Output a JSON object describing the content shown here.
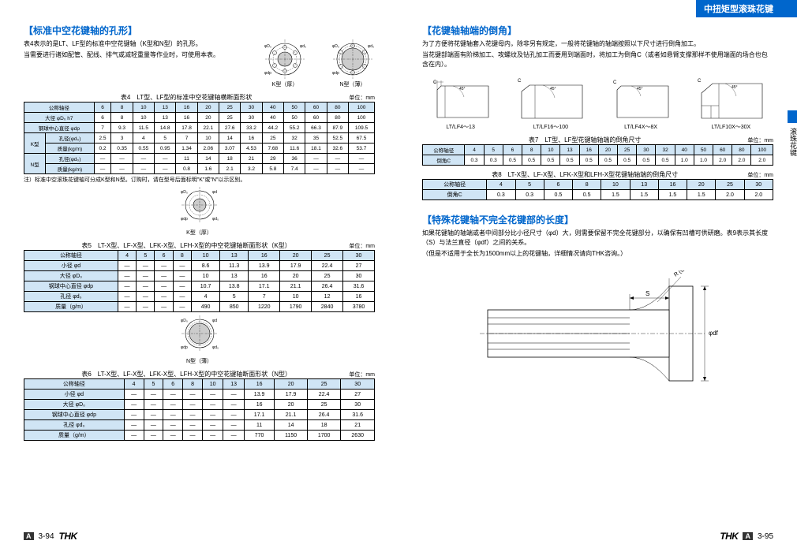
{
  "banner": "中扭矩型滚珠花键",
  "side_tab": "滚珠花键",
  "left": {
    "section1_title": "【标准中空花键轴的孔形】",
    "section1_p1": "表4表示的是LT、LF型的标准中空花键轴（K型和N型）的孔形。",
    "section1_p2": "当需要进行诸如配管、配线、排气或减轻重量等作业时，可使用本表。",
    "diag_k_label": "K型（厚）",
    "diag_n_label": "N型（薄）",
    "table4_caption": "表4　LT型、LF型的标准中空花键轴横断面形状",
    "unit": "单位：mm",
    "table4": {
      "headers": [
        "公称轴径",
        "6",
        "8",
        "10",
        "13",
        "16",
        "20",
        "25",
        "30",
        "40",
        "50",
        "60",
        "80",
        "100"
      ],
      "rows": [
        [
          "大径 φD₀ h7",
          "6",
          "8",
          "10",
          "13",
          "16",
          "20",
          "25",
          "30",
          "40",
          "50",
          "60",
          "80",
          "100"
        ],
        [
          "钢球中心直径 φdp",
          "7",
          "9.3",
          "11.5",
          "14.8",
          "17.8",
          "22.1",
          "27.6",
          "33.2",
          "44.2",
          "55.2",
          "66.3",
          "87.9",
          "109.5"
        ],
        [
          "K型|孔径(φd₀)",
          "2.5",
          "3",
          "4",
          "5",
          "7",
          "10",
          "14",
          "16",
          "25",
          "32",
          "35",
          "52.5",
          "67.5"
        ],
        [
          "K型|质量(kg/m)",
          "0.2",
          "0.35",
          "0.55",
          "0.95",
          "1.34",
          "2.06",
          "3.07",
          "4.53",
          "7.68",
          "11.6",
          "18.1",
          "32.6",
          "53.7"
        ],
        [
          "N型|孔径(φd₀)",
          "—",
          "—",
          "—",
          "—",
          "11",
          "14",
          "18",
          "21",
          "29",
          "36",
          "—",
          "—",
          "—"
        ],
        [
          "N型|质量(kg/m)",
          "—",
          "—",
          "—",
          "—",
          "0.8",
          "1.6",
          "2.1",
          "3.2",
          "5.8",
          "7.4",
          "—",
          "—",
          "—"
        ]
      ]
    },
    "note4": "注）标准中空滚珠花键轴可分成K型和N型。订购时，请在型号后面标明\"K\"或\"N\"以示区别。",
    "table5_caption": "表5　LT-X型、LF-X型、LFK-X型、LFH-X型的中空花键轴断面形状（K型）",
    "table5_diag_label": "K型（厚）",
    "table5": {
      "headers": [
        "公称轴径",
        "4",
        "5",
        "6",
        "8",
        "10",
        "13",
        "16",
        "20",
        "25",
        "30"
      ],
      "rows": [
        [
          "小径 φd",
          "—",
          "—",
          "—",
          "—",
          "8.6",
          "11.3",
          "13.9",
          "17.9",
          "22.4",
          "27"
        ],
        [
          "大径 φD₀",
          "—",
          "—",
          "—",
          "—",
          "10",
          "13",
          "16",
          "20",
          "25",
          "30"
        ],
        [
          "钢球中心直径 φdp",
          "—",
          "—",
          "—",
          "—",
          "10.7",
          "13.8",
          "17.1",
          "21.1",
          "26.4",
          "31.6"
        ],
        [
          "孔径 φd₀",
          "—",
          "—",
          "—",
          "—",
          "4",
          "5",
          "7",
          "10",
          "12",
          "16"
        ],
        [
          "质量（g/m）",
          "—",
          "—",
          "—",
          "—",
          "490",
          "850",
          "1220",
          "1790",
          "2840",
          "3780"
        ]
      ]
    },
    "table6_caption": "表6　LT-X型、LF-X型、LFK-X型、LFH-X型的中空花键轴断面形状（N型）",
    "table6_diag_label": "N型（薄）",
    "table6": {
      "headers": [
        "公称轴径",
        "4",
        "5",
        "6",
        "8",
        "10",
        "13",
        "16",
        "20",
        "25",
        "30"
      ],
      "rows": [
        [
          "小径 φd",
          "—",
          "—",
          "—",
          "—",
          "—",
          "—",
          "13.9",
          "17.9",
          "22.4",
          "27"
        ],
        [
          "大径 φD₀",
          "—",
          "—",
          "—",
          "—",
          "—",
          "—",
          "16",
          "20",
          "25",
          "30"
        ],
        [
          "钢球中心直径 φdp",
          "—",
          "—",
          "—",
          "—",
          "—",
          "—",
          "17.1",
          "21.1",
          "26.4",
          "31.6"
        ],
        [
          "孔径 φd₀",
          "—",
          "—",
          "—",
          "—",
          "—",
          "—",
          "11",
          "14",
          "18",
          "21"
        ],
        [
          "质量（g/m）",
          "—",
          "—",
          "—",
          "—",
          "—",
          "—",
          "770",
          "1150",
          "1700",
          "2630"
        ]
      ]
    },
    "page_num": "3-94"
  },
  "right": {
    "section1_title": "【花键轴轴端的倒角】",
    "section1_p1": "为了方便将花键轴套入花键母内，除非另有规定，一般将花键轴的轴端按照以下尺寸进行倒角加工。",
    "section1_p2": "当花键部端面有阶梯加工、攻螺纹及钻孔加工而要用到端面时，将加工为倒角C（或者如悬臂支撑那样不使用端面的场合也包含在内）。",
    "chamfer_labels": [
      "LT/LF4～13",
      "LT/LF16～100",
      "LT/LF4X～8X",
      "LT/LF10X～30X"
    ],
    "table7_caption": "表7　LT型、LF型花键轴轴端的倒角尺寸",
    "table7": {
      "headers": [
        "公称轴径",
        "4",
        "5",
        "6",
        "8",
        "10",
        "13",
        "16",
        "20",
        "25",
        "30",
        "32",
        "40",
        "50",
        "60",
        "80",
        "100"
      ],
      "row": [
        "倒角C",
        "0.3",
        "0.3",
        "0.5",
        "0.5",
        "0.5",
        "0.5",
        "0.5",
        "0.5",
        "0.5",
        "0.5",
        "0.5",
        "1.0",
        "1.0",
        "2.0",
        "2.0",
        "2.0"
      ]
    },
    "table8_caption": "表8　LT-X型、LF-X型、LFK-X型和LFH-X型花键轴轴端的倒角尺寸",
    "table8": {
      "headers": [
        "公称轴径",
        "4",
        "5",
        "6",
        "8",
        "10",
        "13",
        "16",
        "20",
        "25",
        "30"
      ],
      "row": [
        "倒角C",
        "0.3",
        "0.3",
        "0.5",
        "0.5",
        "1.5",
        "1.5",
        "1.5",
        "1.5",
        "2.0",
        "2.0"
      ]
    },
    "section2_title": "【特殊花键轴不完全花键部的长度】",
    "section2_p1": "如果花键轴的轴端或者中间部分比小径尺寸（φd）大，则需要保留不完全花键部分，以确保有凹槽可供研磨。表9表示其长度（S）与法兰直径（φdf）之间的关系。",
    "section2_p2": "（但是不适用于全长为1500mm以上的花键轴，详细情况请向THK咨询。）",
    "illust_labels": {
      "s": "S",
      "r": "R (砂轮半径)",
      "df": "φdf"
    },
    "page_num": "3-95"
  },
  "colors": {
    "blue": "#0066cc",
    "header_bg": "#d0e5f5",
    "border": "#000000"
  }
}
